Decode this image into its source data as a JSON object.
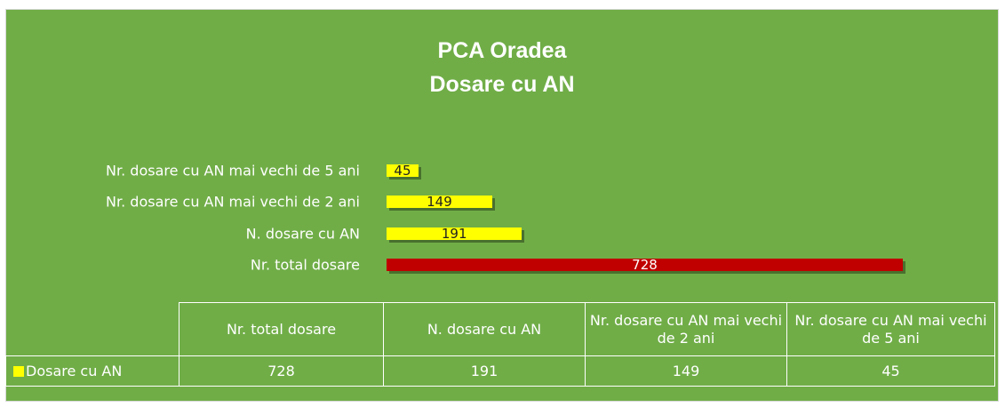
{
  "chart_data": {
    "type": "bar",
    "orientation": "horizontal",
    "title": [
      "PCA Oradea",
      "Dosare cu AN"
    ],
    "categories": [
      "Nr. total dosare",
      "N. dosare cu AN",
      "Nr. dosare cu AN mai vechi de 2 ani",
      "Nr. dosare cu AN mai vechi de 5 ani"
    ],
    "series": [
      {
        "name": "Dosare cu AN",
        "color": "#ffff00",
        "values": [
          728,
          191,
          149,
          45
        ]
      }
    ],
    "bar_colors": [
      "#c00000",
      "#ffff00",
      "#ffff00",
      "#ffff00"
    ],
    "data_table": true
  }
}
